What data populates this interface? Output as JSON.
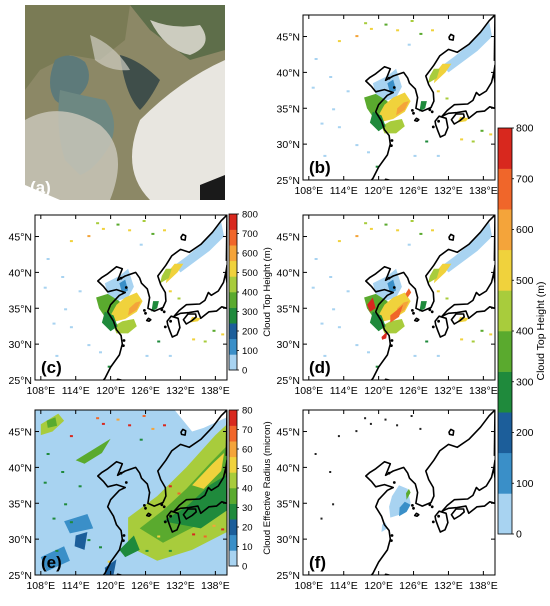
{
  "panels": [
    {
      "id": "a",
      "label": "(a)",
      "kind": "satellite"
    },
    {
      "id": "b",
      "label": "(b)",
      "kind": "cloud-top-height",
      "x_ticks": [
        "108°E",
        "114°E",
        "120°E",
        "126°E",
        "132°E",
        "138°E"
      ],
      "y_ticks": [
        "25°N",
        "30°N",
        "35°N",
        "40°N",
        "45°N"
      ]
    },
    {
      "id": "c",
      "label": "(c)",
      "kind": "cloud-top-height",
      "x_ticks": [
        "108°E",
        "114°E",
        "120°E",
        "126°E",
        "132°E",
        "138°E"
      ],
      "y_ticks": [
        "25°N",
        "30°N",
        "35°N",
        "40°N",
        "45°N"
      ]
    },
    {
      "id": "d",
      "label": "(d)",
      "kind": "cloud-top-height",
      "x_ticks": [
        "108°E",
        "114°E",
        "120°E",
        "126°E",
        "132°E",
        "138°E"
      ],
      "y_ticks": [
        "25°N",
        "30°N",
        "35°N",
        "40°N",
        "45°N"
      ]
    },
    {
      "id": "e",
      "label": "(e)",
      "kind": "cloud-effective-radius",
      "x_ticks": [
        "108°E",
        "114°E",
        "120°E",
        "126°E",
        "132°E",
        "138°E"
      ],
      "y_ticks": [
        "25°N",
        "30°N",
        "35°N",
        "40°N",
        "45°N"
      ]
    },
    {
      "id": "f",
      "label": "(f)",
      "kind": "cloud-top-height",
      "x_ticks": [
        "108°E",
        "114°E",
        "120°E",
        "126°E",
        "132°E",
        "138°E"
      ],
      "y_ticks": [
        "25°N",
        "30°N",
        "35°N",
        "40°N",
        "45°N"
      ]
    }
  ],
  "colorbars": [
    {
      "id": "cth-small",
      "title": "Cloud Top Height (m)",
      "ticks": [
        "800",
        "700",
        "600",
        "500",
        "400",
        "300",
        "200",
        "100",
        "0"
      ]
    },
    {
      "id": "cth-large",
      "title": "Cloud Top Height (m)",
      "ticks": [
        "800",
        "700",
        "600",
        "500",
        "400",
        "300",
        "200",
        "100",
        "0"
      ]
    },
    {
      "id": "cer",
      "title": "Cloud Effective Radius (micron)",
      "ticks": [
        "80",
        "70",
        "60",
        "50",
        "40",
        "30",
        "20",
        "10",
        "0"
      ]
    }
  ],
  "colors": {
    "scale": [
      "#a8d3f1",
      "#3a8fc8",
      "#1c5e9a",
      "#1f8a3c",
      "#5aaa2e",
      "#a8cc3c",
      "#f0d23c",
      "#f4a43a",
      "#f0662a",
      "#d8281e"
    ],
    "coast": "#000000"
  }
}
